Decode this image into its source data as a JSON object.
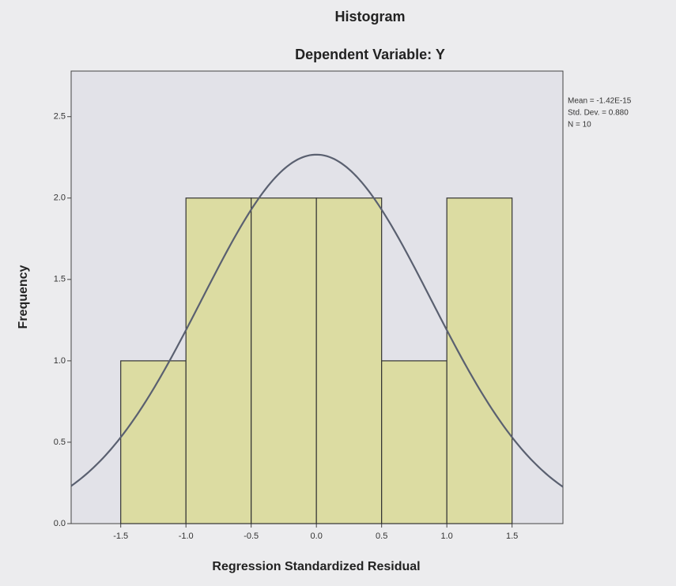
{
  "chart_data": {
    "type": "histogram",
    "title": "Histogram",
    "subtitle": "Dependent Variable: Y",
    "x_label": "Regression Standardized Residual",
    "y_label": "Frequency",
    "bins": [
      -1.5,
      -1.0,
      -0.5,
      0.0,
      0.5,
      1.0,
      1.5
    ],
    "values": [
      1,
      2,
      2,
      2,
      1,
      2
    ],
    "color": "#dcdca2",
    "xlim": [
      -1.88,
      1.89
    ],
    "xticks": [
      -1.5,
      {
        "value": -1.0,
        "label": "-1.0"
      },
      -0.5,
      {
        "value": 0.0,
        "label": "0.0"
      },
      0.5,
      {
        "value": 1.0,
        "label": "1.0"
      },
      1.5
    ],
    "ylim": [
      0,
      2.78
    ],
    "yticks": [
      {
        "value": 0,
        "label": "0.0"
      },
      0.5,
      {
        "value": 1,
        "label": "1.0"
      },
      1.5,
      {
        "value": 2,
        "label": "2.0"
      },
      2.5
    ],
    "normal_curve": {
      "mean": -1.42e-15,
      "std_dev": 0.88,
      "n": 10,
      "color": "#5a6070"
    },
    "stats_labels": [
      "Mean = -1.42E-15",
      "Std. Dev. = 0.880",
      "N = 10"
    ]
  }
}
